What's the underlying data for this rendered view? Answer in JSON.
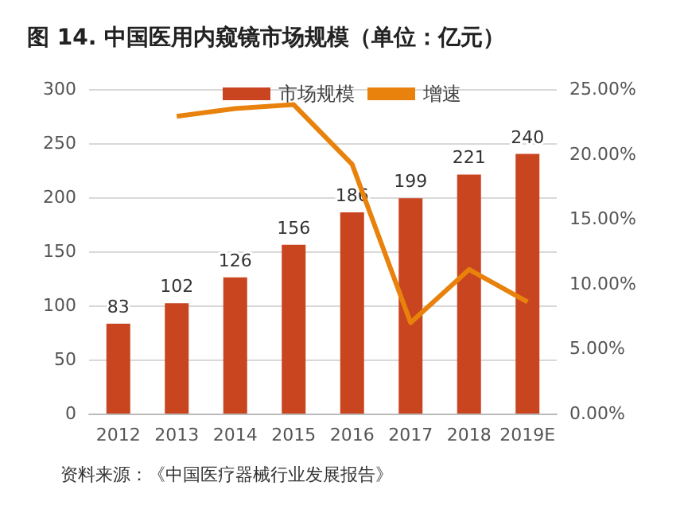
{
  "chart_data": {
    "type": "bar",
    "title": "图 14. 中国医用内窥镜市场规模（单位：亿元）",
    "categories": [
      "2012",
      "2013",
      "2014",
      "2015",
      "2016",
      "2017",
      "2018",
      "2019E"
    ],
    "series": [
      {
        "name": "市场规模",
        "color": "#c9451f",
        "values": [
          83,
          102,
          126,
          156,
          186,
          199,
          221,
          240
        ],
        "data_labels": true
      },
      {
        "name": "增速",
        "type": "line",
        "axis": "y2",
        "color": "#e8820c",
        "marker": "none",
        "values": [
          null,
          22.9,
          23.5,
          23.8,
          19.2,
          7.0,
          11.1,
          8.6
        ]
      }
    ],
    "ylim": [
      0,
      300
    ],
    "yticks": [
      0,
      50,
      100,
      150,
      200,
      250,
      300
    ],
    "y2lim": [
      0,
      25
    ],
    "y2ticks": [
      {
        "value": 0,
        "label": "0.00%"
      },
      {
        "value": 5,
        "label": "5.00%"
      },
      {
        "value": 10,
        "label": "10.00%"
      },
      {
        "value": 15,
        "label": "15.00%"
      },
      {
        "value": 20,
        "label": "20.00%"
      },
      {
        "value": 25,
        "label": "25.00%"
      }
    ],
    "grid": "y",
    "legend": "top",
    "annotations": [
      "资料来源：《中国医疗器械行业发展报告》"
    ]
  }
}
